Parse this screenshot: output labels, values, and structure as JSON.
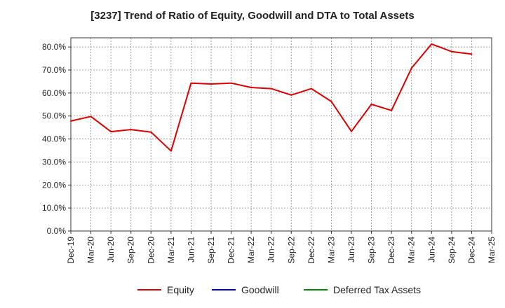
{
  "chart_data": {
    "type": "line",
    "title": "[3237]  Trend of Ratio of Equity, Goodwill and DTA to Total Assets",
    "xlabel": "",
    "ylabel": "",
    "ylim": [
      0,
      84
    ],
    "y_ticks": [
      "0.0%",
      "10.0%",
      "20.0%",
      "30.0%",
      "40.0%",
      "50.0%",
      "60.0%",
      "70.0%",
      "80.0%"
    ],
    "x_ticks": [
      "Dec-19",
      "Mar-20",
      "Jun-20",
      "Sep-20",
      "Dec-20",
      "Mar-21",
      "Jun-21",
      "Sep-21",
      "Dec-21",
      "Mar-22",
      "Jun-22",
      "Sep-22",
      "Dec-22",
      "Mar-23",
      "Jun-23",
      "Sep-23",
      "Dec-23",
      "Mar-24",
      "Jun-24",
      "Sep-24",
      "Dec-24",
      "Mar-25"
    ],
    "grid": true,
    "legend_position": "bottom",
    "series": [
      {
        "name": "Equity",
        "color": "#dd0000",
        "x": [
          "Dec-19",
          "Mar-20",
          "Jun-20",
          "Sep-20",
          "Dec-20",
          "Mar-21",
          "Jun-21",
          "Sep-21",
          "Dec-21",
          "Mar-22",
          "Jun-22",
          "Sep-22",
          "Dec-22",
          "Mar-23",
          "Jun-23",
          "Sep-23",
          "Dec-23",
          "Mar-24",
          "Jun-24",
          "Sep-24",
          "Dec-24"
        ],
        "values": [
          47.8,
          49.8,
          43.2,
          44.1,
          43.0,
          34.8,
          64.3,
          63.9,
          64.3,
          62.4,
          61.9,
          59.1,
          61.9,
          56.3,
          43.3,
          55.1,
          52.4,
          70.8,
          81.3,
          78.0,
          76.9
        ]
      },
      {
        "name": "Goodwill",
        "color": "#0000cc",
        "x": [],
        "values": []
      },
      {
        "name": "Deferred Tax Assets",
        "color": "#008800",
        "x": [],
        "values": []
      }
    ]
  }
}
